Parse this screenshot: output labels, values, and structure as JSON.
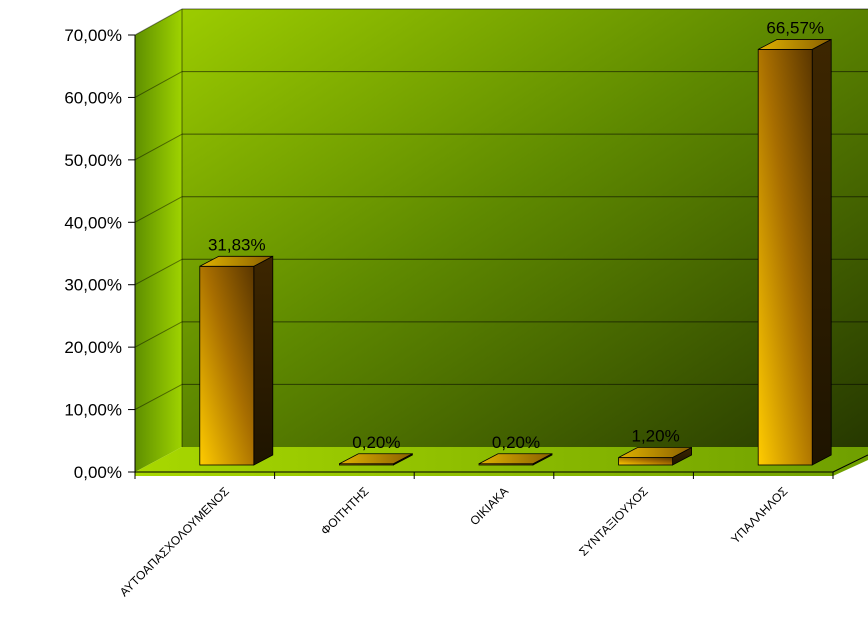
{
  "chart_data": {
    "type": "bar",
    "categories": [
      "ΑΥΤΟΑΠΑΣΧΟΛΟΥΜΕΝΟΣ",
      "ΦΟΙΤΗΤΗΣ",
      "ΟΙΚΙΑΚΑ",
      "ΣΥΝΤΑΞΙΟΥΧΟΣ",
      "ΥΠΑΛΛΗΛΟΣ"
    ],
    "values": [
      31.83,
      0.2,
      0.2,
      1.2,
      66.57
    ],
    "data_labels": [
      "31,83%",
      "0,20%",
      "0,20%",
      "1,20%",
      "66,57%"
    ],
    "y_ticks": [
      "0,00%",
      "10,00%",
      "20,00%",
      "30,00%",
      "40,00%",
      "50,00%",
      "60,00%",
      "70,00%"
    ],
    "ylim": [
      0,
      70
    ],
    "grid": true,
    "legend": "none",
    "colors": {
      "wall_light": "#99cc00",
      "wall_dark": "#2a3d00",
      "floor": "#8fc400",
      "bar_light": "#ffc800",
      "bar_dark": "#5c3a00"
    }
  }
}
